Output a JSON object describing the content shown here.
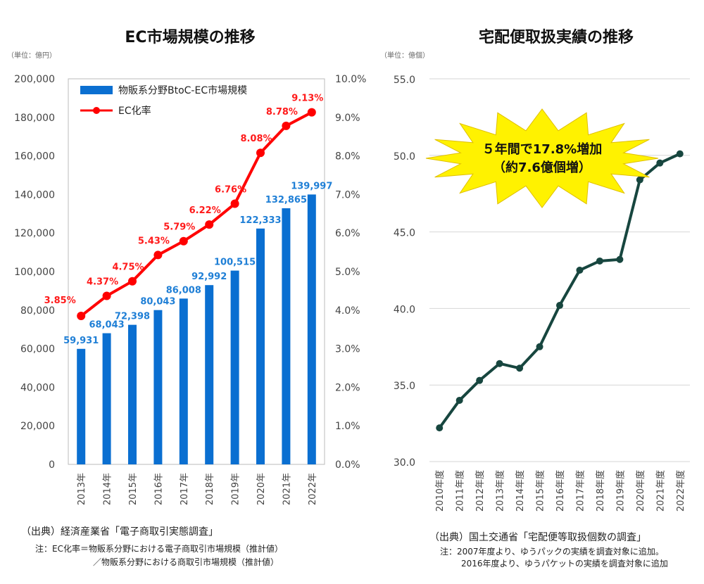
{
  "chart_data": [
    {
      "type": "bar+line",
      "title": "EC市場規模の推移",
      "unit_label": "（単位：億円）",
      "categories": [
        "2013年",
        "2014年",
        "2015年",
        "2016年",
        "2017年",
        "2018年",
        "2019年",
        "2020年",
        "2021年",
        "2022年"
      ],
      "series": [
        {
          "name": "物販系分野BtoC-EC市場規模",
          "type": "bar",
          "axis": "left",
          "color": "#0a6fd1",
          "values": [
            59931,
            68043,
            72398,
            80043,
            86008,
            92992,
            100515,
            122333,
            132865,
            139997
          ],
          "labels": [
            "59,931",
            "68,043",
            "72,398",
            "80,043",
            "86,008",
            "92,992",
            "100,515",
            "122,333",
            "132,865",
            "139,997"
          ]
        },
        {
          "name": "EC化率",
          "type": "line",
          "axis": "right",
          "color": "#ff0000",
          "values": [
            3.85,
            4.37,
            4.75,
            5.43,
            5.79,
            6.22,
            6.76,
            8.08,
            8.78,
            9.13
          ],
          "labels": [
            "3.85%",
            "4.37%",
            "4.75%",
            "5.43%",
            "5.79%",
            "6.22%",
            "6.76%",
            "8.08%",
            "8.78%",
            "9.13%"
          ]
        }
      ],
      "ylim_left": [
        0,
        200000
      ],
      "ylim_right": [
        0,
        10
      ],
      "left_ticks": [
        "0",
        "20,000",
        "40,000",
        "60,000",
        "80,000",
        "100,000",
        "120,000",
        "140,000",
        "160,000",
        "180,000",
        "200,000"
      ],
      "right_ticks": [
        "0.0%",
        "1.0%",
        "2.0%",
        "3.0%",
        "4.0%",
        "5.0%",
        "6.0%",
        "7.0%",
        "8.0%",
        "9.0%",
        "10.0%"
      ],
      "legend": "top-left",
      "grid": false,
      "source": "（出典）経済産業省「電子商取引実態調査」",
      "notes": [
        "注：EC化率＝物販系分野における電子商取引市場規模（推計値）",
        "／物販系分野における商取引市場規模（推計値）"
      ]
    },
    {
      "type": "line",
      "title": "宅配便取扱実績の推移",
      "unit_label": "（単位：億個）",
      "categories": [
        "2010年度",
        "2011年度",
        "2012年度",
        "2013年度",
        "2014年度",
        "2015年度",
        "2016年度",
        "2017年度",
        "2018年度",
        "2019年度",
        "2020年度",
        "2021年度",
        "2022年度"
      ],
      "series": [
        {
          "type": "line",
          "color": "#17463f",
          "values": [
            32.2,
            34.0,
            35.3,
            36.4,
            36.1,
            37.5,
            40.2,
            42.5,
            43.1,
            43.2,
            48.4,
            49.5,
            50.1
          ]
        }
      ],
      "ylim": [
        30,
        55
      ],
      "y_ticks": [
        "30.0",
        "35.0",
        "40.0",
        "45.0",
        "50.0",
        "55.0"
      ],
      "grid": true,
      "annotation": {
        "line1": "５年間で17.8%増加",
        "line2": "（約7.6億個増）",
        "color": "#fff200"
      },
      "source": "（出典）国土交通省「宅配便等取扱個数の調査」",
      "notes": [
        "注：2007年度より、ゆうパックの実績を調査対象に追加。",
        "2016年度より、ゆうパケットの実績を調査対象に追加"
      ]
    }
  ]
}
